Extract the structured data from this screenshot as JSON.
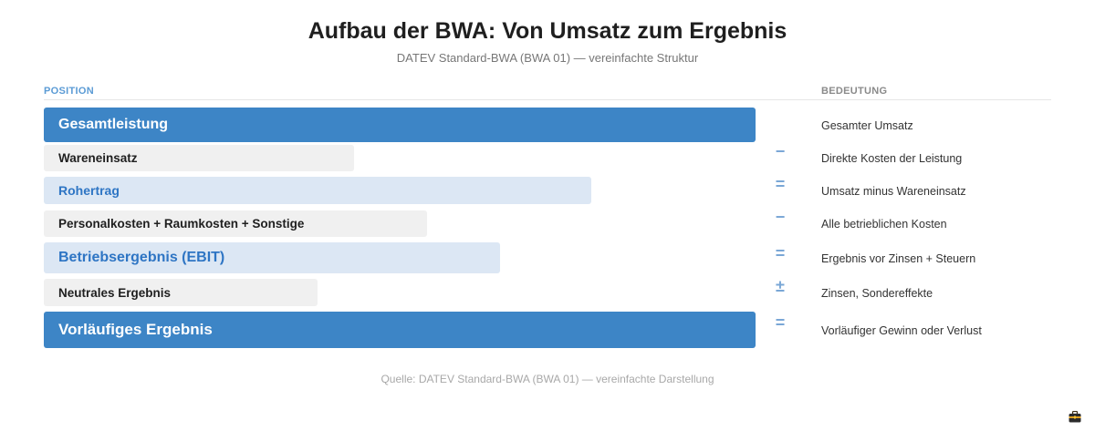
{
  "header": {
    "title": "Aufbau der BWA: Von Umsatz zum Ergebnis",
    "subtitle": "DATEV Standard-BWA (BWA 01) — vereinfachte Struktur"
  },
  "columns": {
    "position": "POSITION",
    "meaning": "BEDEUTUNG"
  },
  "rows": [
    {
      "label": "Gesamtleistung",
      "operator": "",
      "meaning": "Gesamter Umsatz",
      "style": "primary"
    },
    {
      "label": "Wareneinsatz",
      "operator": "−",
      "meaning": "Direkte Kosten der Leistung",
      "style": "neutral"
    },
    {
      "label": "Rohertrag",
      "operator": "=",
      "meaning": "Umsatz minus Wareneinsatz",
      "style": "secondary"
    },
    {
      "label": "Personalkosten + Raumkosten + Sonstige",
      "operator": "−",
      "meaning": "Alle betrieblichen Kosten",
      "style": "neutral"
    },
    {
      "label": "Betriebsergebnis (EBIT)",
      "operator": "=",
      "meaning": "Ergebnis vor Zinsen + Steuern",
      "style": "secondary"
    },
    {
      "label": "Neutrales Ergebnis",
      "operator": "±",
      "meaning": "Zinsen, Sondereffekte",
      "style": "neutral"
    },
    {
      "label": "Vorläufiges Ergebnis",
      "operator": "=",
      "meaning": "Vorläufiger Gewinn oder Verlust",
      "style": "primary"
    }
  ],
  "footer": {
    "source": "Quelle: DATEV Standard-BWA (BWA 01) — vereinfachte Darstellung"
  },
  "icons": {
    "corner": "briefcase-icon"
  },
  "colors": {
    "primary": "#3d85c6",
    "secondary": "#dce7f4",
    "neutral": "#f0f0f0",
    "operator": "#7aa7d6"
  }
}
